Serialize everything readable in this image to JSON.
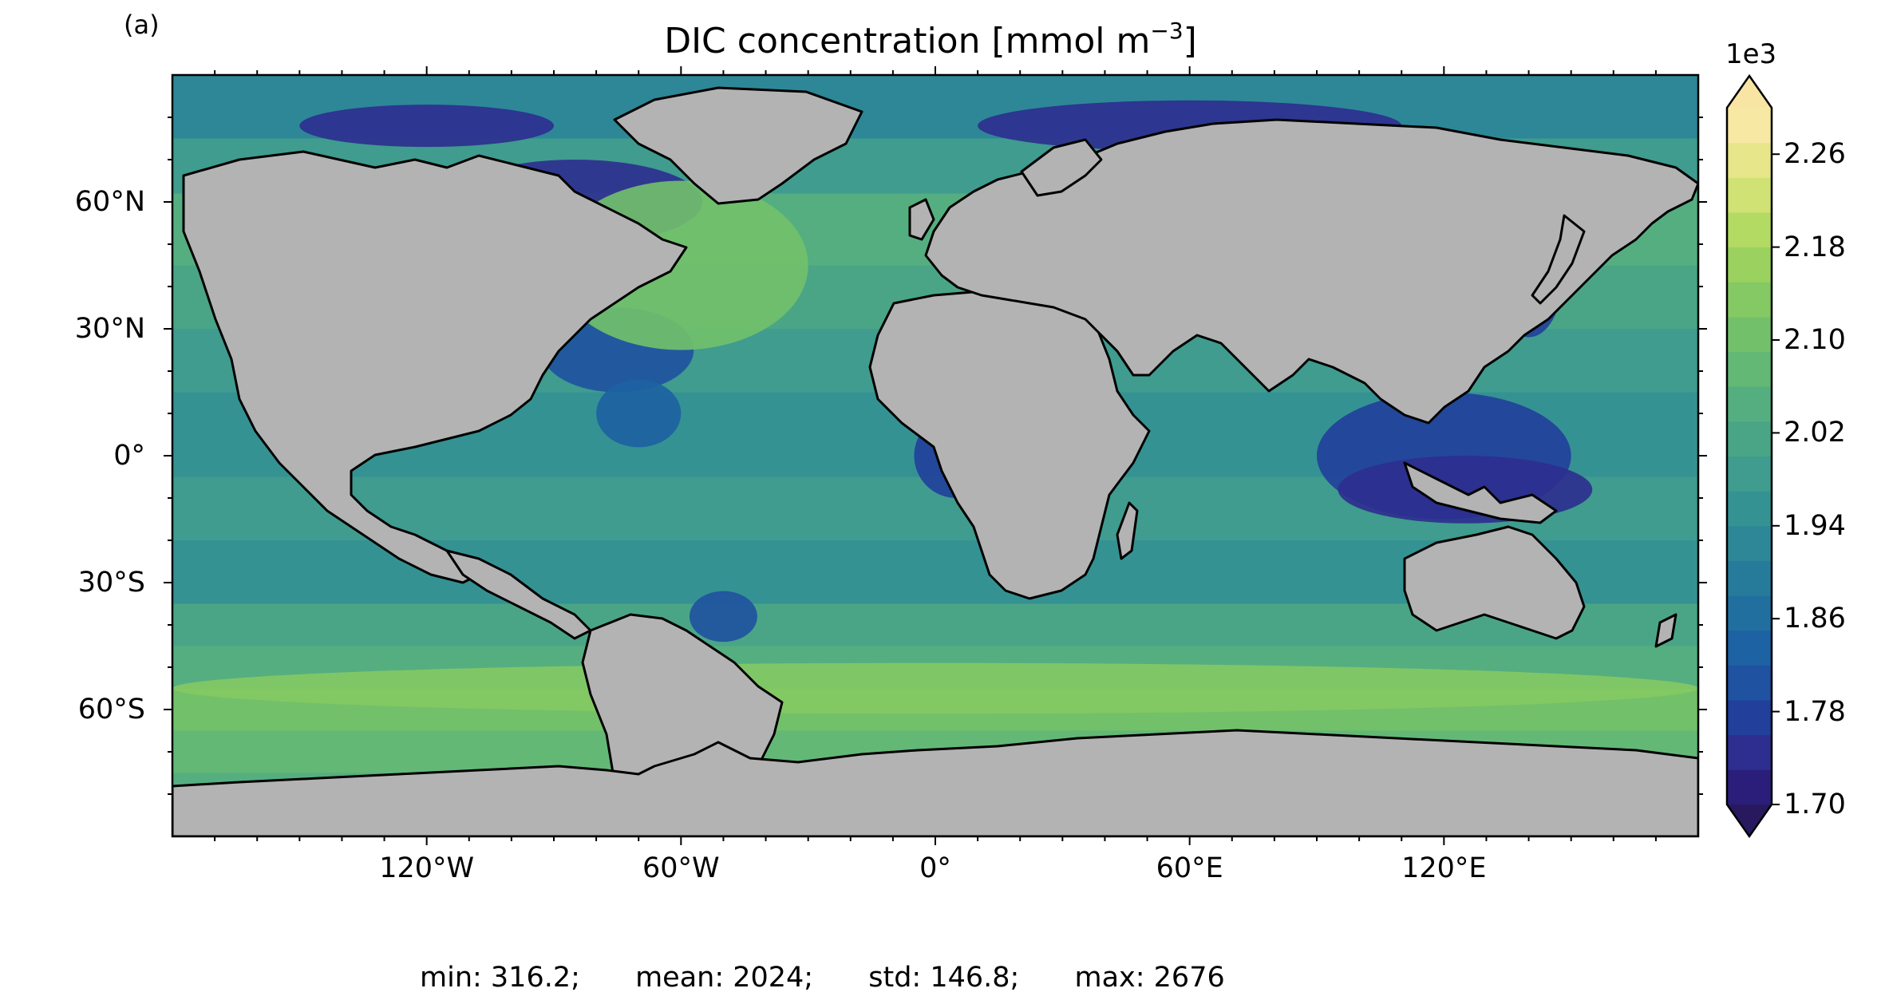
{
  "panel_label": "(a)",
  "title": {
    "text": "DIC concentration [mmol m",
    "superscript": "−3",
    "suffix": "]"
  },
  "axes": {
    "lat_labels": [
      {
        "value": 60,
        "text": "60°N"
      },
      {
        "value": 30,
        "text": "30°N"
      },
      {
        "value": 0,
        "text": "0°"
      },
      {
        "value": -30,
        "text": "30°S"
      },
      {
        "value": -60,
        "text": "60°S"
      }
    ],
    "lon_labels": [
      {
        "value": -120,
        "text": "120°W"
      },
      {
        "value": -60,
        "text": "60°W"
      },
      {
        "value": 0,
        "text": "0°"
      },
      {
        "value": 60,
        "text": "60°E"
      },
      {
        "value": 120,
        "text": "120°E"
      }
    ],
    "lat_range": [
      -90,
      90
    ],
    "lon_range": [
      -180,
      180
    ]
  },
  "colorbar": {
    "exponent_label": "1e3",
    "range": [
      1.7,
      2.3
    ],
    "tick_labels": [
      {
        "value": 1.7,
        "text": "1.70"
      },
      {
        "value": 1.78,
        "text": "1.78"
      },
      {
        "value": 1.86,
        "text": "1.86"
      },
      {
        "value": 1.94,
        "text": "1.94"
      },
      {
        "value": 2.02,
        "text": "2.02"
      },
      {
        "value": 2.1,
        "text": "2.10"
      },
      {
        "value": 2.18,
        "text": "2.18"
      },
      {
        "value": 2.26,
        "text": "2.26"
      }
    ],
    "extend": "both",
    "colors": [
      "#2b1e7a",
      "#2d2e8f",
      "#213f9b",
      "#1f52a0",
      "#1d62a2",
      "#216f9f",
      "#267b9a",
      "#2d8797",
      "#359293",
      "#3f9c8e",
      "#4aa587",
      "#55ae80",
      "#63b876",
      "#72c16a",
      "#84c963",
      "#9ad15f",
      "#b3da63",
      "#cfe273",
      "#e8e68a",
      "#f7e8a4"
    ],
    "over_color": "#f8e5a3",
    "under_color": "#28195e"
  },
  "map_colors": {
    "land": "#b3b3b3",
    "ocean_base": "#3a9a8e",
    "coast": "#000000"
  },
  "stats": {
    "min": "min: 316.2;",
    "mean": "mean: 2024;",
    "std": "std: 146.8;",
    "max": "max: 2676"
  }
}
